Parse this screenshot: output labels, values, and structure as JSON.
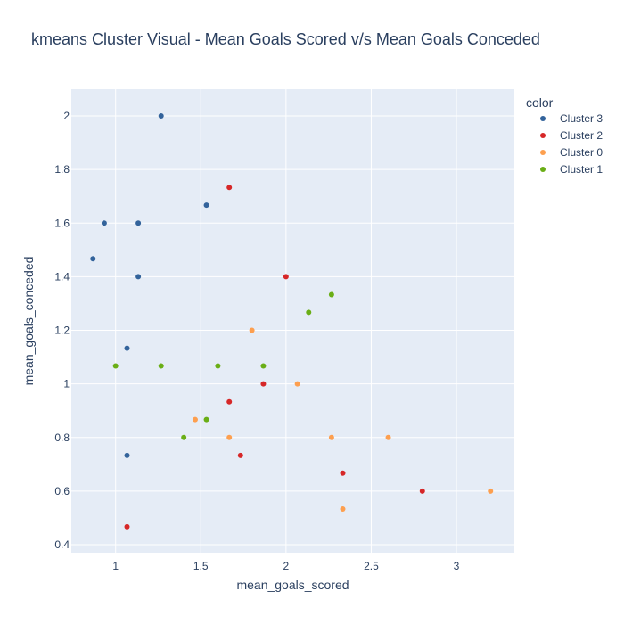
{
  "chart_data": {
    "type": "scatter",
    "title": "kmeans Cluster Visual - Mean Goals Scored v/s Mean Goals Conceded",
    "xlabel": "mean_goals_scored",
    "ylabel": "mean_goals_conceded",
    "xlim": [
      0.74,
      3.34
    ],
    "ylim": [
      0.37,
      2.1
    ],
    "xticks": [
      1,
      1.5,
      2,
      2.5,
      3
    ],
    "xtick_labels": [
      "1",
      "1.5",
      "2",
      "2.5",
      "3"
    ],
    "yticks": [
      0.4,
      0.6,
      0.8,
      1,
      1.2,
      1.4,
      1.6,
      1.8,
      2
    ],
    "ytick_labels": [
      "0.4",
      "0.6",
      "0.8",
      "1",
      "1.2",
      "1.4",
      "1.6",
      "1.8",
      "2"
    ],
    "grid": true,
    "background": "#e5ecf6",
    "legend": {
      "title": "color",
      "placement": "top-right"
    },
    "series": [
      {
        "name": "Cluster 3",
        "color": "#33639b",
        "points": [
          [
            1.267,
            2.0
          ],
          [
            1.533,
            1.667
          ],
          [
            0.933,
            1.6
          ],
          [
            1.133,
            1.6
          ],
          [
            0.867,
            1.467
          ],
          [
            1.133,
            1.4
          ],
          [
            1.067,
            1.133
          ],
          [
            1.067,
            0.733
          ]
        ]
      },
      {
        "name": "Cluster 2",
        "color": "#d62728",
        "points": [
          [
            1.667,
            1.733
          ],
          [
            2.0,
            1.4
          ],
          [
            1.867,
            1.0
          ],
          [
            1.667,
            0.933
          ],
          [
            1.733,
            0.733
          ],
          [
            2.333,
            0.667
          ],
          [
            2.8,
            0.6
          ],
          [
            1.067,
            0.467
          ]
        ]
      },
      {
        "name": "Cluster 0",
        "color": "#fd9f4f",
        "points": [
          [
            1.8,
            1.2
          ],
          [
            2.067,
            1.0
          ],
          [
            1.467,
            0.867
          ],
          [
            1.667,
            0.8
          ],
          [
            2.267,
            0.8
          ],
          [
            2.6,
            0.8
          ],
          [
            3.2,
            0.6
          ],
          [
            2.333,
            0.533
          ]
        ]
      },
      {
        "name": "Cluster 1",
        "color": "#6aae16",
        "points": [
          [
            2.267,
            1.333
          ],
          [
            2.133,
            1.267
          ],
          [
            1.0,
            1.067
          ],
          [
            1.267,
            1.067
          ],
          [
            1.6,
            1.067
          ],
          [
            1.867,
            1.067
          ],
          [
            1.533,
            0.867
          ],
          [
            1.4,
            0.8
          ]
        ]
      }
    ]
  }
}
